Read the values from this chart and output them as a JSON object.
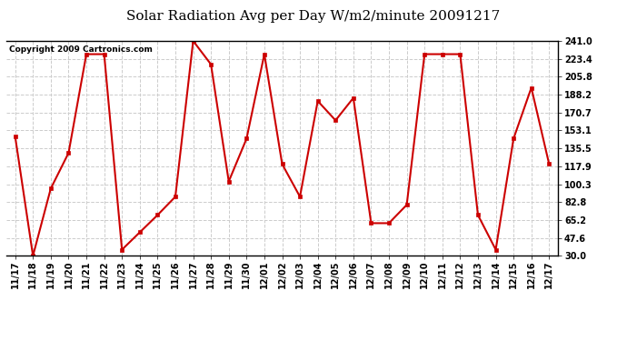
{
  "title": "Solar Radiation Avg per Day W/m2/minute 20091217",
  "copyright": "Copyright 2009 Cartronics.com",
  "labels": [
    "11/17",
    "11/18",
    "11/19",
    "11/20",
    "11/21",
    "11/22",
    "11/23",
    "11/24",
    "11/25",
    "11/26",
    "11/27",
    "11/28",
    "11/29",
    "11/30",
    "12/01",
    "12/02",
    "12/03",
    "12/04",
    "12/05",
    "12/06",
    "12/07",
    "12/08",
    "12/09",
    "12/10",
    "12/11",
    "12/12",
    "12/13",
    "12/14",
    "12/15",
    "12/16",
    "12/17"
  ],
  "values": [
    147.0,
    30.0,
    96.0,
    131.0,
    228.0,
    228.0,
    36.0,
    53.0,
    70.0,
    88.0,
    241.0,
    218.0,
    103.0,
    145.0,
    228.0,
    120.0,
    88.0,
    182.0,
    163.0,
    185.0,
    62.0,
    62.0,
    80.0,
    228.0,
    228.0,
    228.0,
    70.0,
    36.0,
    145.0,
    195.0,
    120.0
  ],
  "ylim": [
    30.0,
    241.0
  ],
  "yticks": [
    30.0,
    47.6,
    65.2,
    82.8,
    100.3,
    117.9,
    135.5,
    153.1,
    170.7,
    188.2,
    205.8,
    223.4,
    241.0
  ],
  "ytick_labels": [
    "30.0",
    "47.6",
    "65.2",
    "82.8",
    "100.3",
    "117.9",
    "135.5",
    "153.1",
    "170.7",
    "188.2",
    "205.8",
    "223.4",
    "241.0"
  ],
  "line_color": "#cc0000",
  "marker": "s",
  "marker_color": "#cc0000",
  "marker_size": 3,
  "bg_color": "#ffffff",
  "plot_bg_color": "#ffffff",
  "grid_color": "#cccccc",
  "border_color": "#000000",
  "title_fontsize": 11,
  "tick_fontsize": 7,
  "copyright_fontsize": 6.5
}
